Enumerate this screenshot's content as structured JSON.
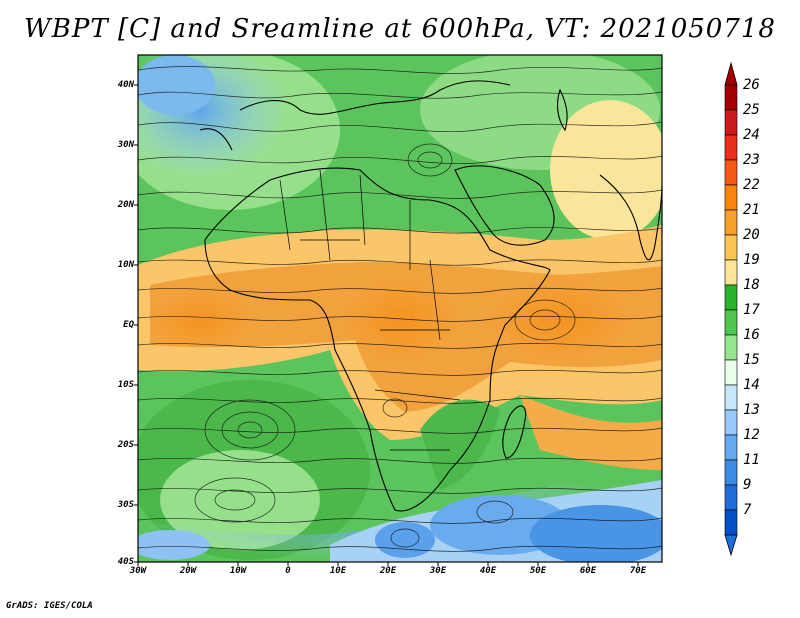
{
  "title": "WBPT [C] and Sreamline at 600hPa, VT: 2021050718",
  "footer": "GrADS: IGES/COLA",
  "latitudes": [
    "40N",
    "30N",
    "20N",
    "10N",
    "EQ",
    "10S",
    "20S",
    "30S",
    "40S"
  ],
  "longitudes": [
    "30W",
    "20W",
    "10W",
    "0",
    "10E",
    "20E",
    "30E",
    "40E",
    "50E",
    "60E",
    "70E"
  ],
  "colorbar": {
    "labels": [
      "26",
      "25",
      "24",
      "23",
      "22",
      "21",
      "20",
      "19",
      "18",
      "17",
      "16",
      "15",
      "14",
      "13",
      "12",
      "11",
      "9",
      "7"
    ],
    "colors": [
      "#a50000",
      "#cc1a1a",
      "#e8301a",
      "#f55a14",
      "#fa820f",
      "#f5a028",
      "#fac850",
      "#fae696",
      "#28b428",
      "#50c850",
      "#96e68c",
      "#e8ffe8",
      "#c8e6fa",
      "#96c8fa",
      "#64aaf0",
      "#3c8ce6",
      "#1e6edc",
      "#0050c8"
    ]
  },
  "legend": {
    "colors": {
      "land_border": "#000000",
      "streamline": "#000000",
      "background": "#ffffff"
    }
  }
}
